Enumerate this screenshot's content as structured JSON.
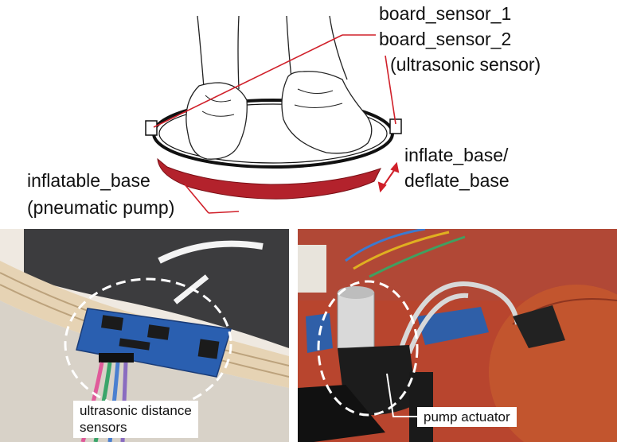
{
  "diagram": {
    "labels": {
      "board_sensor_1": "board_sensor_1",
      "board_sensor_2": "board_sensor_2",
      "ultrasonic_sensor": "(ultrasonic sensor)",
      "inflate_base": "inflate_base/",
      "deflate_base": "deflate_base",
      "inflatable_base": "inflatable_base",
      "pneumatic_pump": "(pneumatic pump)"
    },
    "colors": {
      "pointer_red": "#d0202a",
      "cushion_red": "#b3222c",
      "outline": "#111111"
    }
  },
  "photos": {
    "left": {
      "caption_line1": "ultrasonic distance",
      "caption_line2": "sensors"
    },
    "right": {
      "caption": "pump actuator"
    }
  }
}
